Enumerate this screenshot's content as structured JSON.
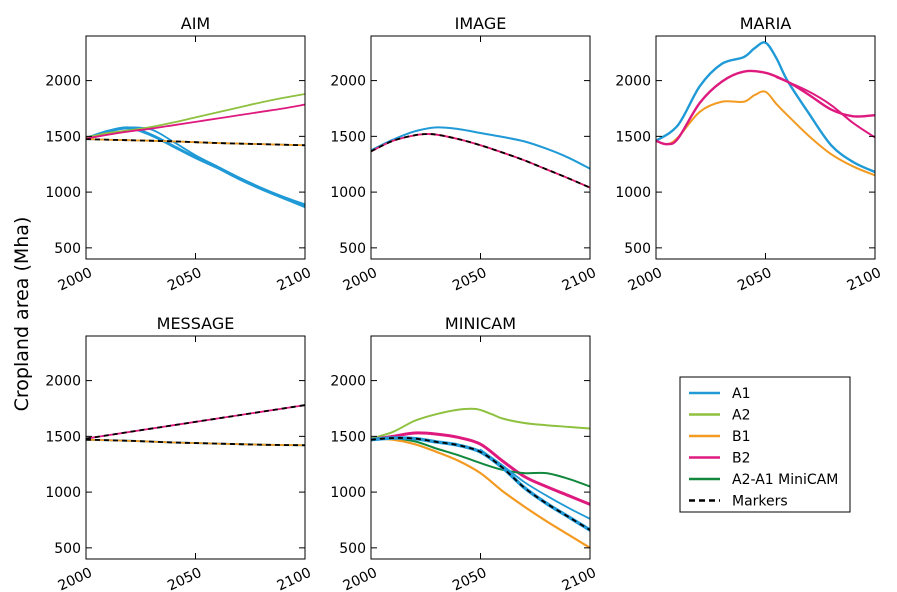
{
  "figure": {
    "ylabel": "Cropland area (Mha)"
  },
  "colors": {
    "A1": "#1f9ad6",
    "A2": "#8dc13f",
    "B1": "#f39a21",
    "B2": "#de1a7f",
    "A2-A1 MiniCAM": "#12883e",
    "Markers": "#000000"
  },
  "legend": {
    "placement": "lower-right",
    "entries": [
      {
        "label": "A1",
        "dash": false
      },
      {
        "label": "A2",
        "dash": false
      },
      {
        "label": "B1",
        "dash": false
      },
      {
        "label": "B2",
        "dash": false
      },
      {
        "label": "A2-A1 MiniCAM",
        "dash": false
      },
      {
        "label": "Markers",
        "dash": true
      }
    ]
  },
  "chart_data": [
    {
      "type": "line",
      "title": "AIM",
      "xlim": [
        2000,
        2100
      ],
      "ylim": [
        400,
        2400
      ],
      "xticks": [
        "2000",
        "2050",
        "2100"
      ],
      "yticks": [
        "500",
        "1000",
        "1500",
        "2000"
      ],
      "grid": false,
      "series": [
        {
          "name": "A1",
          "width": 3,
          "x": [
            2000,
            2010,
            2020,
            2030,
            2040,
            2050,
            2060,
            2070,
            2080,
            2090,
            2100
          ],
          "y": [
            1480,
            1545,
            1575,
            1510,
            1410,
            1310,
            1220,
            1120,
            1030,
            950,
            870
          ]
        },
        {
          "name": "A1",
          "width": 1.8,
          "x": [
            2000,
            2010,
            2020,
            2030,
            2040,
            2050,
            2060,
            2070,
            2080,
            2090,
            2100
          ],
          "y": [
            1480,
            1550,
            1580,
            1560,
            1450,
            1330,
            1230,
            1130,
            1040,
            960,
            890
          ]
        },
        {
          "name": "A1",
          "width": 1.8,
          "x": [
            2000,
            2020,
            2040,
            2060,
            2080,
            2100
          ],
          "y": [
            1475,
            1465,
            1455,
            1440,
            1430,
            1420
          ]
        },
        {
          "name": "A2",
          "width": 1.8,
          "x": [
            2000,
            2010,
            2020,
            2030,
            2040,
            2050,
            2060,
            2070,
            2080,
            2090,
            2100
          ],
          "y": [
            1490,
            1530,
            1555,
            1585,
            1625,
            1670,
            1715,
            1760,
            1805,
            1845,
            1880
          ]
        },
        {
          "name": "B1",
          "width": 1.8,
          "x": [
            2000,
            2020,
            2040,
            2060,
            2080,
            2100
          ],
          "y": [
            1475,
            1465,
            1455,
            1440,
            1430,
            1420
          ]
        },
        {
          "name": "B2",
          "width": 1.8,
          "x": [
            2000,
            2010,
            2020,
            2030,
            2040,
            2050,
            2060,
            2070,
            2080,
            2090,
            2100
          ],
          "y": [
            1480,
            1515,
            1545,
            1570,
            1600,
            1630,
            1660,
            1690,
            1720,
            1750,
            1785
          ]
        },
        {
          "name": "Markers",
          "dash": true,
          "width": 1.8,
          "x": [
            2000,
            2020,
            2040,
            2060,
            2080,
            2100
          ],
          "y": [
            1475,
            1465,
            1455,
            1440,
            1430,
            1420
          ]
        }
      ]
    },
    {
      "type": "line",
      "title": "IMAGE",
      "xlim": [
        2000,
        2100
      ],
      "ylim": [
        400,
        2400
      ],
      "xticks": [
        "2000",
        "2050",
        "2100"
      ],
      "yticks": [
        "500",
        "1000",
        "1500",
        "2000"
      ],
      "grid": false,
      "series": [
        {
          "name": "A1",
          "width": 2,
          "x": [
            2000,
            2010,
            2020,
            2030,
            2040,
            2050,
            2060,
            2070,
            2080,
            2090,
            2100
          ],
          "y": [
            1375,
            1470,
            1545,
            1580,
            1565,
            1530,
            1495,
            1455,
            1390,
            1310,
            1210
          ]
        },
        {
          "name": "B1",
          "width": 1.8,
          "x": [
            2000,
            2010,
            2020,
            2025,
            2030,
            2040,
            2050,
            2060,
            2070,
            2080,
            2090,
            2100
          ],
          "y": [
            1365,
            1460,
            1510,
            1520,
            1515,
            1475,
            1420,
            1355,
            1285,
            1205,
            1125,
            1040
          ]
        },
        {
          "name": "B2",
          "width": 1.8,
          "x": [
            2000,
            2010,
            2020,
            2025,
            2030,
            2040,
            2050,
            2060,
            2070,
            2080,
            2090,
            2100
          ],
          "y": [
            1365,
            1460,
            1510,
            1520,
            1515,
            1475,
            1420,
            1355,
            1285,
            1205,
            1125,
            1040
          ]
        },
        {
          "name": "Markers",
          "dash": true,
          "width": 1.8,
          "x": [
            2000,
            2010,
            2020,
            2025,
            2030,
            2040,
            2050,
            2060,
            2070,
            2080,
            2090,
            2100
          ],
          "y": [
            1365,
            1460,
            1510,
            1520,
            1515,
            1475,
            1420,
            1355,
            1285,
            1205,
            1125,
            1040
          ]
        }
      ]
    },
    {
      "type": "line",
      "title": "MARIA",
      "xlim": [
        2000,
        2100
      ],
      "ylim": [
        400,
        2400
      ],
      "xticks": [
        "2000",
        "2050",
        "2100"
      ],
      "yticks": [
        "500",
        "1000",
        "1500",
        "2000"
      ],
      "grid": false,
      "series": [
        {
          "name": "A1",
          "width": 2.4,
          "x": [
            2000,
            2010,
            2020,
            2030,
            2040,
            2045,
            2050,
            2055,
            2060,
            2070,
            2080,
            2090,
            2100
          ],
          "y": [
            1460,
            1600,
            1950,
            2150,
            2210,
            2290,
            2340,
            2200,
            2000,
            1700,
            1420,
            1270,
            1180
          ]
        },
        {
          "name": "B1",
          "width": 2,
          "x": [
            2000,
            2005,
            2010,
            2020,
            2030,
            2040,
            2045,
            2050,
            2055,
            2060,
            2070,
            2080,
            2090,
            2100
          ],
          "y": [
            1460,
            1430,
            1490,
            1720,
            1810,
            1810,
            1870,
            1900,
            1790,
            1690,
            1500,
            1340,
            1230,
            1150
          ]
        },
        {
          "name": "B2",
          "width": 2.4,
          "x": [
            2000,
            2005,
            2010,
            2020,
            2030,
            2040,
            2050,
            2060,
            2070,
            2080,
            2090,
            2100
          ],
          "y": [
            1460,
            1430,
            1480,
            1800,
            1990,
            2080,
            2070,
            1990,
            1870,
            1740,
            1680,
            1690
          ]
        },
        {
          "name": "B2",
          "width": 2,
          "x": [
            2055,
            2060,
            2070,
            2080,
            2090,
            2100
          ],
          "y": [
            2030,
            1990,
            1900,
            1780,
            1620,
            1490
          ]
        }
      ]
    },
    {
      "type": "line",
      "title": "MESSAGE",
      "xlim": [
        2000,
        2100
      ],
      "ylim": [
        400,
        2400
      ],
      "xticks": [
        "2000",
        "2050",
        "2100"
      ],
      "yticks": [
        "500",
        "1000",
        "1500",
        "2000"
      ],
      "grid": false,
      "series": [
        {
          "name": "A1",
          "width": 2,
          "x": [
            2000,
            2020,
            2040,
            2060,
            2080,
            2100
          ],
          "y": [
            1470,
            1460,
            1445,
            1435,
            1425,
            1420
          ]
        },
        {
          "name": "B1",
          "width": 1.8,
          "x": [
            2000,
            2020,
            2040,
            2060,
            2080,
            2100
          ],
          "y": [
            1470,
            1460,
            1445,
            1435,
            1425,
            1420
          ]
        },
        {
          "name": "B2",
          "width": 1.8,
          "x": [
            2000,
            2020,
            2040,
            2060,
            2080,
            2100
          ],
          "y": [
            1480,
            1540,
            1600,
            1660,
            1720,
            1780
          ]
        },
        {
          "name": "Markers",
          "dash": true,
          "width": 1.8,
          "x": [
            2000,
            2020,
            2040,
            2060,
            2080,
            2100
          ],
          "y": [
            1480,
            1540,
            1600,
            1660,
            1720,
            1780
          ]
        },
        {
          "name": "Markers",
          "dash": true,
          "width": 1.8,
          "x": [
            2000,
            2020,
            2040,
            2060,
            2080,
            2100
          ],
          "y": [
            1470,
            1460,
            1445,
            1435,
            1425,
            1420
          ]
        }
      ]
    },
    {
      "type": "line",
      "title": "MINICAM",
      "xlim": [
        2000,
        2100
      ],
      "ylim": [
        400,
        2400
      ],
      "xticks": [
        "2000",
        "2050",
        "2100"
      ],
      "yticks": [
        "500",
        "1000",
        "1500",
        "2000"
      ],
      "grid": false,
      "series": [
        {
          "name": "A2",
          "width": 2,
          "x": [
            2000,
            2010,
            2020,
            2030,
            2040,
            2048,
            2055,
            2060,
            2070,
            2080,
            2090,
            2100
          ],
          "y": [
            1480,
            1540,
            1640,
            1700,
            1740,
            1745,
            1700,
            1660,
            1620,
            1600,
            1585,
            1570
          ]
        },
        {
          "name": "B2",
          "width": 3,
          "x": [
            2000,
            2010,
            2020,
            2030,
            2040,
            2050,
            2060,
            2070,
            2080,
            2090,
            2100
          ],
          "y": [
            1470,
            1500,
            1530,
            1520,
            1490,
            1430,
            1280,
            1140,
            1050,
            970,
            890
          ]
        },
        {
          "name": "A2-A1 MiniCAM",
          "width": 2,
          "x": [
            2000,
            2010,
            2020,
            2030,
            2040,
            2050,
            2060,
            2070,
            2080,
            2090,
            2100
          ],
          "y": [
            1470,
            1480,
            1455,
            1390,
            1330,
            1260,
            1200,
            1170,
            1170,
            1120,
            1050
          ]
        },
        {
          "name": "B1",
          "width": 2.2,
          "x": [
            2000,
            2010,
            2020,
            2030,
            2040,
            2050,
            2060,
            2070,
            2080,
            2090,
            2100
          ],
          "y": [
            1480,
            1470,
            1430,
            1360,
            1280,
            1170,
            1010,
            870,
            740,
            620,
            500
          ]
        },
        {
          "name": "A1",
          "width": 3.5,
          "x": [
            2000,
            2010,
            2020,
            2030,
            2040,
            2050,
            2060,
            2070,
            2080,
            2090,
            2100
          ],
          "y": [
            1470,
            1485,
            1480,
            1450,
            1420,
            1360,
            1220,
            1040,
            900,
            780,
            660
          ]
        },
        {
          "name": "A1",
          "width": 1.8,
          "x": [
            2050,
            2060,
            2070,
            2080,
            2090,
            2100
          ],
          "y": [
            1380,
            1240,
            1090,
            970,
            860,
            760
          ]
        },
        {
          "name": "Markers",
          "dash": true,
          "width": 1.8,
          "x": [
            2000,
            2010,
            2020,
            2030,
            2040,
            2050,
            2060,
            2070,
            2080,
            2090,
            2100
          ],
          "y": [
            1470,
            1485,
            1480,
            1450,
            1420,
            1360,
            1220,
            1040,
            900,
            780,
            660
          ]
        }
      ]
    }
  ]
}
